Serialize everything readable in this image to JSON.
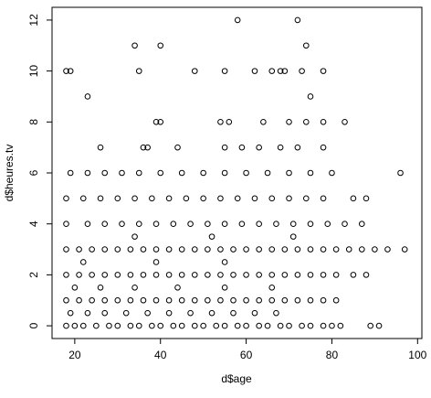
{
  "chart_data": {
    "type": "scatter",
    "xlabel": "d$age",
    "ylabel": "d$heures.tv",
    "xlim": [
      14.7,
      101
    ],
    "ylim": [
      -0.5,
      12.5
    ],
    "xticks": [
      20,
      40,
      60,
      80,
      100
    ],
    "yticks": [
      0,
      2,
      4,
      6,
      8,
      10,
      12
    ],
    "color": "#000000",
    "x": [
      18,
      20,
      22,
      25,
      28,
      30,
      33,
      35,
      38,
      40,
      43,
      45,
      48,
      50,
      53,
      55,
      58,
      60,
      63,
      65,
      68,
      70,
      73,
      75,
      78,
      80,
      82,
      89,
      91,
      19,
      23,
      27,
      32,
      37,
      42,
      47,
      52,
      57,
      62,
      67,
      18,
      21,
      24,
      27,
      30,
      33,
      36,
      39,
      42,
      45,
      48,
      51,
      54,
      57,
      60,
      63,
      66,
      69,
      72,
      75,
      78,
      81,
      20,
      26,
      34,
      44,
      55,
      66,
      18,
      21,
      24,
      27,
      30,
      33,
      36,
      39,
      42,
      45,
      48,
      51,
      54,
      57,
      60,
      63,
      66,
      69,
      72,
      75,
      78,
      81,
      85,
      88,
      22,
      39,
      55,
      18,
      21,
      24,
      27,
      30,
      33,
      36,
      39,
      42,
      45,
      48,
      51,
      54,
      57,
      60,
      63,
      66,
      69,
      72,
      75,
      78,
      81,
      84,
      87,
      90,
      93,
      97,
      34,
      52,
      71,
      18,
      23,
      27,
      31,
      35,
      39,
      43,
      47,
      51,
      55,
      59,
      63,
      67,
      71,
      75,
      79,
      83,
      87,
      18,
      22,
      26,
      30,
      34,
      38,
      42,
      46,
      50,
      54,
      58,
      62,
      66,
      70,
      74,
      78,
      85,
      88,
      19,
      23,
      27,
      31,
      35,
      40,
      45,
      50,
      55,
      60,
      65,
      70,
      75,
      80,
      96,
      26,
      36,
      37,
      44,
      55,
      59,
      63,
      68,
      72,
      78,
      39,
      40,
      54,
      56,
      64,
      70,
      74,
      78,
      83,
      23,
      75,
      18,
      19,
      35,
      48,
      55,
      62,
      66,
      68,
      69,
      73,
      78,
      34,
      40,
      74,
      58,
      72
    ],
    "y": [
      0,
      0,
      0,
      0,
      0,
      0,
      0,
      0,
      0,
      0,
      0,
      0,
      0,
      0,
      0,
      0,
      0,
      0,
      0,
      0,
      0,
      0,
      0,
      0,
      0,
      0,
      0,
      0,
      0,
      0.5,
      0.5,
      0.5,
      0.5,
      0.5,
      0.5,
      0.5,
      0.5,
      0.5,
      0.5,
      0.5,
      1,
      1,
      1,
      1,
      1,
      1,
      1,
      1,
      1,
      1,
      1,
      1,
      1,
      1,
      1,
      1,
      1,
      1,
      1,
      1,
      1,
      1,
      1.5,
      1.5,
      1.5,
      1.5,
      1.5,
      1.5,
      2,
      2,
      2,
      2,
      2,
      2,
      2,
      2,
      2,
      2,
      2,
      2,
      2,
      2,
      2,
      2,
      2,
      2,
      2,
      2,
      2,
      2,
      2,
      2,
      2.5,
      2.5,
      2.5,
      3,
      3,
      3,
      3,
      3,
      3,
      3,
      3,
      3,
      3,
      3,
      3,
      3,
      3,
      3,
      3,
      3,
      3,
      3,
      3,
      3,
      3,
      3,
      3,
      3,
      3,
      3,
      3.5,
      3.5,
      3.5,
      4,
      4,
      4,
      4,
      4,
      4,
      4,
      4,
      4,
      4,
      4,
      4,
      4,
      4,
      4,
      4,
      4,
      4,
      5,
      5,
      5,
      5,
      5,
      5,
      5,
      5,
      5,
      5,
      5,
      5,
      5,
      5,
      5,
      5,
      5,
      5,
      6,
      6,
      6,
      6,
      6,
      6,
      6,
      6,
      6,
      6,
      6,
      6,
      6,
      6,
      6,
      7,
      7,
      7,
      7,
      7,
      7,
      7,
      7,
      7,
      7,
      8,
      8,
      8,
      8,
      8,
      8,
      8,
      8,
      8,
      9,
      9,
      10,
      10,
      10,
      10,
      10,
      10,
      10,
      10,
      10,
      10,
      10,
      11,
      11,
      11,
      12,
      12
    ]
  }
}
